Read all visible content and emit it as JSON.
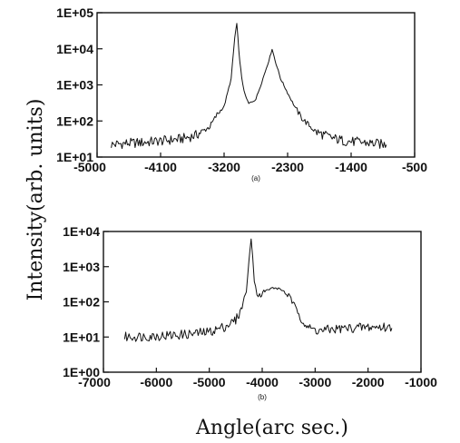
{
  "ylabel": "Intensity(arb. units)",
  "xlabel": "Angle(arc sec.)",
  "chart_data": [
    {
      "type": "line",
      "panel": "(a)",
      "y_scale": "log",
      "xlim": [
        -5000,
        -500
      ],
      "ylim": [
        10,
        100000
      ],
      "xticks": [
        -5000,
        -4100,
        -3200,
        -2300,
        -1400,
        -500
      ],
      "xtick_labels": [
        "-5000",
        "-4100",
        "-3200",
        "-2300",
        "-1400",
        "-500"
      ],
      "ytick_labels": [
        "1E+01",
        "1E+02",
        "1E+03",
        "1E+04",
        "1E+05"
      ],
      "grid": false,
      "series": [
        {
          "points": [
            [
              -4800,
              22
            ],
            [
              -4600,
              24
            ],
            [
              -4400,
              25
            ],
            [
              -4200,
              27
            ],
            [
              -4000,
              29
            ],
            [
              -3800,
              32
            ],
            [
              -3600,
              40
            ],
            [
              -3400,
              70
            ],
            [
              -3300,
              150
            ],
            [
              -3200,
              250
            ],
            [
              -3100,
              1500
            ],
            [
              -3050,
              20000
            ],
            [
              -3020,
              50000
            ],
            [
              -2990,
              8000
            ],
            [
              -2950,
              1500
            ],
            [
              -2900,
              500
            ],
            [
              -2850,
              300
            ],
            [
              -2750,
              400
            ],
            [
              -2650,
              1500
            ],
            [
              -2550,
              6000
            ],
            [
              -2520,
              10000
            ],
            [
              -2480,
              5000
            ],
            [
              -2400,
              1500
            ],
            [
              -2300,
              600
            ],
            [
              -2200,
              250
            ],
            [
              -2100,
              120
            ],
            [
              -1900,
              50
            ],
            [
              -1700,
              35
            ],
            [
              -1500,
              28
            ],
            [
              -1300,
              26
            ],
            [
              -1100,
              24
            ],
            [
              -900,
              22
            ]
          ]
        }
      ]
    },
    {
      "type": "line",
      "panel": "(b)",
      "y_scale": "log",
      "xlim": [
        -7000,
        -1000
      ],
      "ylim": [
        1,
        10000
      ],
      "xticks": [
        -7000,
        -6000,
        -5000,
        -4000,
        -3000,
        -2000,
        -1000
      ],
      "xtick_labels": [
        "-7000",
        "-6000",
        "-5000",
        "-4000",
        "-3000",
        "-2000",
        "-1000"
      ],
      "ytick_labels": [
        "1E+00",
        "1E+01",
        "1E+02",
        "1E+03",
        "1E+04"
      ],
      "grid": false,
      "series": [
        {
          "points": [
            [
              -6600,
              10
            ],
            [
              -6200,
              10.5
            ],
            [
              -5800,
              11
            ],
            [
              -5400,
              12
            ],
            [
              -5000,
              14
            ],
            [
              -4700,
              20
            ],
            [
              -4500,
              30
            ],
            [
              -4400,
              60
            ],
            [
              -4300,
              200
            ],
            [
              -4250,
              1500
            ],
            [
              -4210,
              6000
            ],
            [
              -4180,
              2000
            ],
            [
              -4150,
              400
            ],
            [
              -4100,
              180
            ],
            [
              -4050,
              150
            ],
            [
              -3950,
              200
            ],
            [
              -3800,
              250
            ],
            [
              -3650,
              230
            ],
            [
              -3500,
              150
            ],
            [
              -3350,
              60
            ],
            [
              -3200,
              25
            ],
            [
              -3100,
              17
            ],
            [
              -2900,
              15
            ],
            [
              -2600,
              17
            ],
            [
              -2300,
              18
            ],
            [
              -2000,
              19
            ],
            [
              -1700,
              19
            ],
            [
              -1550,
              18
            ]
          ]
        }
      ]
    }
  ]
}
